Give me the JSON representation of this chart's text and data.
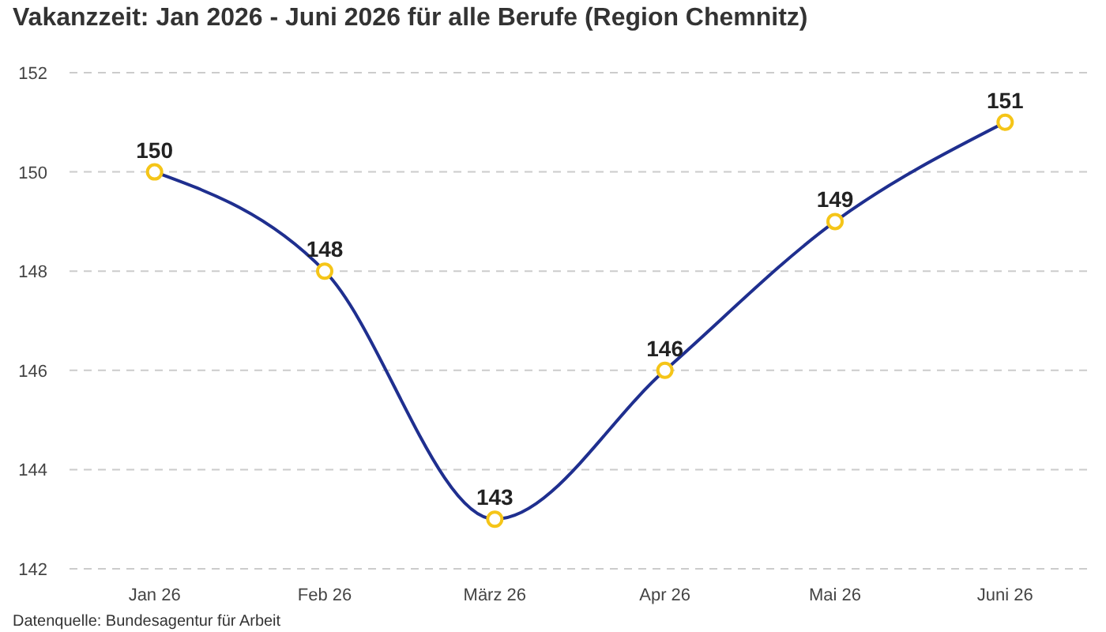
{
  "chart_data": {
    "type": "line",
    "title": "Vakanzzeit: Jan 2026 - Juni 2026 für alle Berufe (Region Chemnitz)",
    "categories": [
      "Jan 26",
      "Feb 26",
      "März 26",
      "Apr 26",
      "Mai 26",
      "Juni 26"
    ],
    "series": [
      {
        "color": "#1f2f8f",
        "values": [
          150,
          148,
          143,
          146,
          149,
          151
        ]
      }
    ],
    "ylim": [
      142,
      152
    ],
    "yticks": [
      142,
      144,
      146,
      148,
      150,
      152
    ],
    "grid": "y",
    "marker": "circle",
    "data_labels": true,
    "annotations": [
      "Datenquelle: Bundesagentur für Arbeit"
    ]
  }
}
